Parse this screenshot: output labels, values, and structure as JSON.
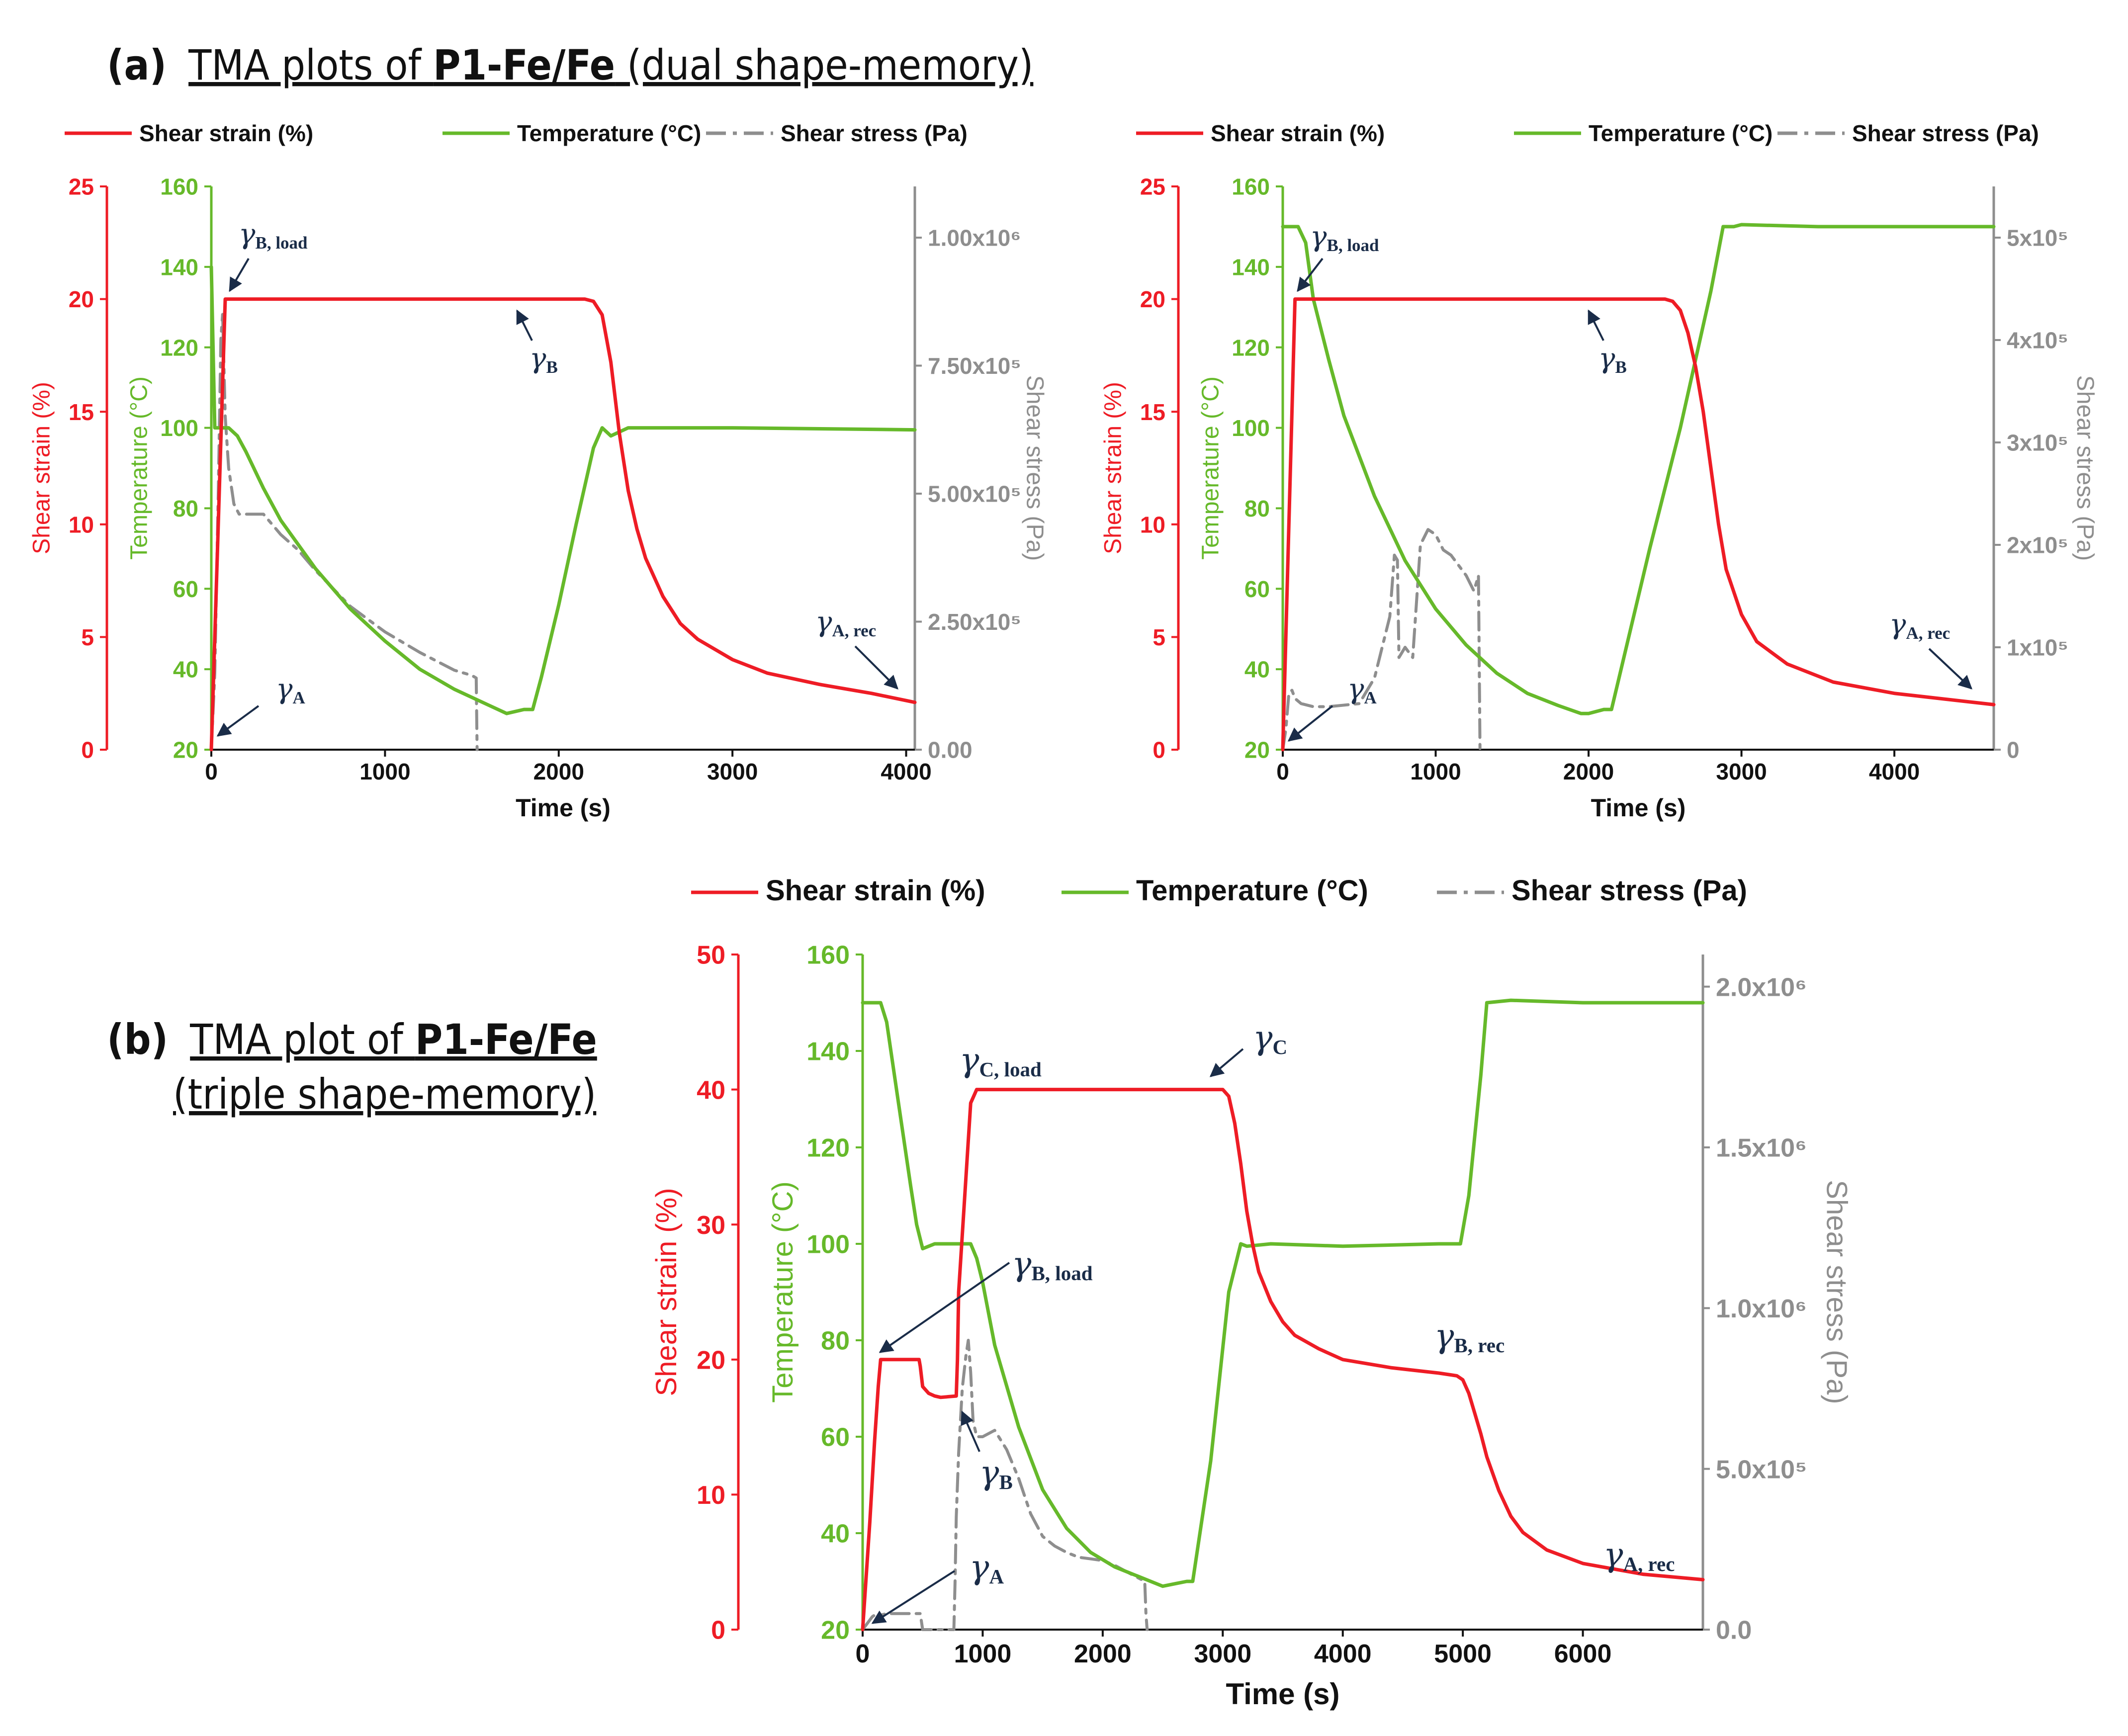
{
  "figure": {
    "heading_a": {
      "label": "(a)",
      "text": "TMA plots of ",
      "bold": "P1-Fe/Fe",
      "tail": " (dual shape-memory)"
    },
    "heading_b": {
      "label": "(b)",
      "text": "TMA plot of ",
      "bold": "P1-Fe/Fe",
      "tail_line2": "(triple shape-memory)"
    }
  },
  "colors": {
    "strain": "#ee1c25",
    "temperature": "#66b92a",
    "stress": "#8e8e8e",
    "annotation": "#1a2c48"
  },
  "chart_data": [
    {
      "id": "dual-left",
      "type": "line",
      "legend": [
        "Shear strain (%)",
        "Temperature (°C)",
        "Shear stress (Pa)"
      ],
      "xlabel": "Time (s)",
      "y1label": "Shear strain (%)",
      "y2label": "Temperature (°C)",
      "y3label": "Shear stress (Pa)",
      "xlim": [
        0,
        4050
      ],
      "y1lim": [
        0,
        25
      ],
      "y2lim": [
        20,
        160
      ],
      "y3lim": [
        0,
        1100000
      ],
      "xticks": [
        0,
        1000,
        2000,
        3000,
        4000
      ],
      "y1ticks": [
        0,
        5,
        10,
        15,
        20,
        25
      ],
      "y2ticks": [
        20,
        40,
        60,
        80,
        100,
        120,
        140,
        160
      ],
      "y3ticks": [
        0,
        250000,
        500000,
        750000,
        1000000
      ],
      "y3ticklabels": [
        "0.00",
        "2.50x10⁵",
        "5.00x10⁵",
        "7.50x10⁵",
        "1.00x10⁶"
      ],
      "series": [
        {
          "name": "Shear strain (%)",
          "axis": "y1",
          "x": [
            0,
            20,
            40,
            60,
            80,
            1000,
            2000,
            2150,
            2200,
            2250,
            2300,
            2350,
            2400,
            2450,
            2500,
            2600,
            2700,
            2800,
            3000,
            3200,
            3500,
            3800,
            4050
          ],
          "y": [
            0,
            5,
            10,
            15,
            20,
            20,
            20,
            20,
            19.9,
            19.3,
            17.2,
            14.0,
            11.5,
            9.8,
            8.5,
            6.8,
            5.6,
            4.9,
            4.0,
            3.4,
            2.9,
            2.5,
            2.1
          ]
        },
        {
          "name": "Temperature (°C)",
          "axis": "y2",
          "x": [
            0,
            10,
            20,
            50,
            100,
            150,
            200,
            300,
            400,
            600,
            800,
            1000,
            1200,
            1400,
            1600,
            1700,
            1800,
            1850,
            1900,
            2000,
            2100,
            2200,
            2250,
            2300,
            2350,
            2400,
            3000,
            4050
          ],
          "y": [
            140,
            120,
            100,
            100,
            100,
            98,
            94,
            85,
            77,
            65,
            55,
            47,
            40,
            35,
            31,
            29,
            30,
            30,
            38,
            56,
            76,
            95,
            100,
            98,
            99,
            100,
            100,
            99.5
          ]
        },
        {
          "name": "Shear stress (Pa)",
          "axis": "y3",
          "x": [
            0,
            20,
            40,
            55,
            65,
            80,
            100,
            130,
            160,
            200,
            300,
            400,
            500,
            600,
            800,
            1000,
            1200,
            1400,
            1500,
            1525,
            1530
          ],
          "y": [
            0,
            150000,
            500000,
            800000,
            850000,
            650000,
            550000,
            480000,
            460000,
            460000,
            460000,
            420000,
            390000,
            350000,
            280000,
            230000,
            190000,
            155000,
            145000,
            140000,
            0
          ]
        }
      ],
      "annotations": [
        "γB, load",
        "γB",
        "γA",
        "γA, rec"
      ]
    },
    {
      "id": "dual-right",
      "type": "line",
      "legend": [
        "Shear strain (%)",
        "Temperature (°C)",
        "Shear stress (Pa)"
      ],
      "xlabel": "Time (s)",
      "y1label": "Shear strain (%)",
      "y2label": "Temperature (°C)",
      "y3label": "Shear stress (Pa)",
      "xlim": [
        0,
        4650
      ],
      "y1lim": [
        0,
        25
      ],
      "y2lim": [
        20,
        160
      ],
      "y3lim": [
        0,
        550000
      ],
      "xticks": [
        0,
        1000,
        2000,
        3000,
        4000
      ],
      "y1ticks": [
        0,
        5,
        10,
        15,
        20,
        25
      ],
      "y2ticks": [
        20,
        40,
        60,
        80,
        100,
        120,
        140,
        160
      ],
      "y3ticks": [
        0,
        100000,
        200000,
        300000,
        400000,
        500000
      ],
      "y3ticklabels": [
        "0",
        "1x10⁵",
        "2x10⁵",
        "3x10⁵",
        "4x10⁵",
        "5x10⁵"
      ],
      "series": [
        {
          "name": "Shear strain (%)",
          "axis": "y1",
          "x": [
            0,
            20,
            40,
            60,
            80,
            1000,
            2000,
            2500,
            2550,
            2600,
            2650,
            2700,
            2750,
            2800,
            2850,
            2900,
            3000,
            3100,
            3300,
            3600,
            4000,
            4650
          ],
          "y": [
            0,
            5,
            10,
            15,
            20,
            20,
            20,
            20,
            19.9,
            19.5,
            18.5,
            17.0,
            15.0,
            12.5,
            10.0,
            8.0,
            6.0,
            4.8,
            3.8,
            3.0,
            2.5,
            2.0
          ]
        },
        {
          "name": "Temperature (°C)",
          "axis": "y2",
          "x": [
            0,
            100,
            150,
            200,
            300,
            400,
            600,
            800,
            1000,
            1200,
            1400,
            1600,
            1800,
            1950,
            2000,
            2100,
            2150,
            2200,
            2400,
            2600,
            2800,
            2880,
            2950,
            3000,
            3500,
            4650
          ],
          "y": [
            150,
            150,
            146,
            132,
            117,
            103,
            83,
            67,
            55,
            46,
            39,
            34,
            31,
            29,
            29,
            30,
            30,
            38,
            70,
            100,
            134,
            150,
            150,
            150.5,
            150,
            150
          ]
        },
        {
          "name": "Shear stress (Pa)",
          "axis": "y3",
          "x": [
            0,
            20,
            40,
            60,
            80,
            120,
            200,
            300,
            500,
            600,
            700,
            730,
            750,
            760,
            780,
            800,
            850,
            900,
            950,
            1000,
            1050,
            1100,
            1150,
            1200,
            1250,
            1270,
            1280,
            1290,
            1300
          ],
          "y": [
            0,
            20000,
            55000,
            58000,
            50000,
            45000,
            42000,
            42000,
            45000,
            70000,
            130000,
            190000,
            185000,
            90000,
            95000,
            100000,
            90000,
            200000,
            215000,
            210000,
            195000,
            190000,
            180000,
            170000,
            155000,
            165000,
            170000,
            0,
            0
          ]
        }
      ],
      "annotations": [
        "γB, load",
        "γB",
        "γA",
        "γA, rec"
      ]
    },
    {
      "id": "triple",
      "type": "line",
      "legend": [
        "Shear strain (%)",
        "Temperature (°C)",
        "Shear stress (Pa)"
      ],
      "xlabel": "Time (s)",
      "y1label": "Shear strain (%)",
      "y2label": "Temperature (°C)",
      "y3label": "Shear stress (Pa)",
      "xlim": [
        0,
        7000
      ],
      "y1lim": [
        0,
        50
      ],
      "y2lim": [
        20,
        160
      ],
      "y3lim": [
        0,
        2100000
      ],
      "xticks": [
        0,
        1000,
        2000,
        3000,
        4000,
        5000,
        6000
      ],
      "y1ticks": [
        0,
        10,
        20,
        30,
        40,
        50
      ],
      "y2ticks": [
        20,
        40,
        60,
        80,
        100,
        120,
        140,
        160
      ],
      "y3ticks": [
        0,
        500000,
        1000000,
        1500000,
        2000000
      ],
      "y3ticklabels": [
        "0.0",
        "5.0x10⁵",
        "1.0x10⁶",
        "1.5x10⁶",
        "2.0x10⁶"
      ],
      "series": [
        {
          "name": "Shear strain (%)",
          "axis": "y1",
          "x": [
            0,
            60,
            100,
            130,
            150,
            470,
            480,
            500,
            550,
            600,
            650,
            780,
            790,
            800,
            850,
            900,
            950,
            1000,
            2000,
            3000,
            3050,
            3100,
            3150,
            3200,
            3250,
            3300,
            3400,
            3500,
            3600,
            3800,
            4000,
            4400,
            4800,
            4950,
            5000,
            5050,
            5100,
            5150,
            5200,
            5300,
            5400,
            5500,
            5700,
            6000,
            6500,
            7000
          ],
          "y": [
            0,
            8,
            14,
            18,
            20,
            20,
            19.5,
            18,
            17.5,
            17.3,
            17.2,
            17.3,
            20,
            25,
            32,
            39,
            40,
            40,
            40,
            40,
            39.5,
            37.5,
            34.5,
            31.0,
            28.5,
            26.5,
            24.3,
            22.8,
            21.8,
            20.8,
            20.0,
            19.4,
            19.0,
            18.8,
            18.5,
            17.5,
            16.0,
            14.5,
            12.8,
            10.3,
            8.4,
            7.2,
            5.9,
            4.9,
            4.1,
            3.7
          ]
        },
        {
          "name": "Temperature (°C)",
          "axis": "y2",
          "x": [
            0,
            150,
            200,
            300,
            400,
            450,
            500,
            600,
            900,
            950,
            1000,
            1100,
            1300,
            1500,
            1700,
            1900,
            2100,
            2300,
            2500,
            2600,
            2700,
            2750,
            2900,
            3050,
            3150,
            3200,
            3400,
            4000,
            4800,
            4980,
            5050,
            5150,
            5200,
            5400,
            6000,
            7000
          ],
          "y": [
            150,
            150,
            146,
            129,
            112,
            104,
            99,
            100,
            100,
            97,
            92,
            79,
            62,
            49,
            41,
            36,
            33,
            31,
            29,
            29.5,
            30,
            30,
            55,
            90,
            100,
            99.5,
            100,
            99.5,
            100,
            100,
            110,
            135,
            150,
            150.5,
            150,
            150
          ]
        },
        {
          "name": "Shear stress (Pa)",
          "axis": "y3",
          "x": [
            0,
            40,
            80,
            100,
            150,
            200,
            300,
            400,
            480,
            500,
            760,
            770,
            780,
            800,
            830,
            860,
            880,
            900,
            920,
            950,
            1000,
            1100,
            1200,
            1300,
            1400,
            1500,
            1600,
            1700,
            1800,
            1900,
            2000,
            2100,
            2200,
            2300,
            2350,
            2360,
            2370
          ],
          "y": [
            0,
            20000,
            40000,
            45000,
            45000,
            50000,
            50000,
            50000,
            50000,
            0,
            0,
            150000,
            350000,
            550000,
            750000,
            850000,
            900000,
            800000,
            650000,
            600000,
            600000,
            620000,
            560000,
            470000,
            360000,
            290000,
            260000,
            240000,
            225000,
            220000,
            215000,
            200000,
            180000,
            160000,
            150000,
            50000,
            0
          ]
        }
      ],
      "annotations": [
        "γC, load",
        "γC",
        "γB, load",
        "γB",
        "γA",
        "γB, rec",
        "γA, rec"
      ]
    }
  ]
}
